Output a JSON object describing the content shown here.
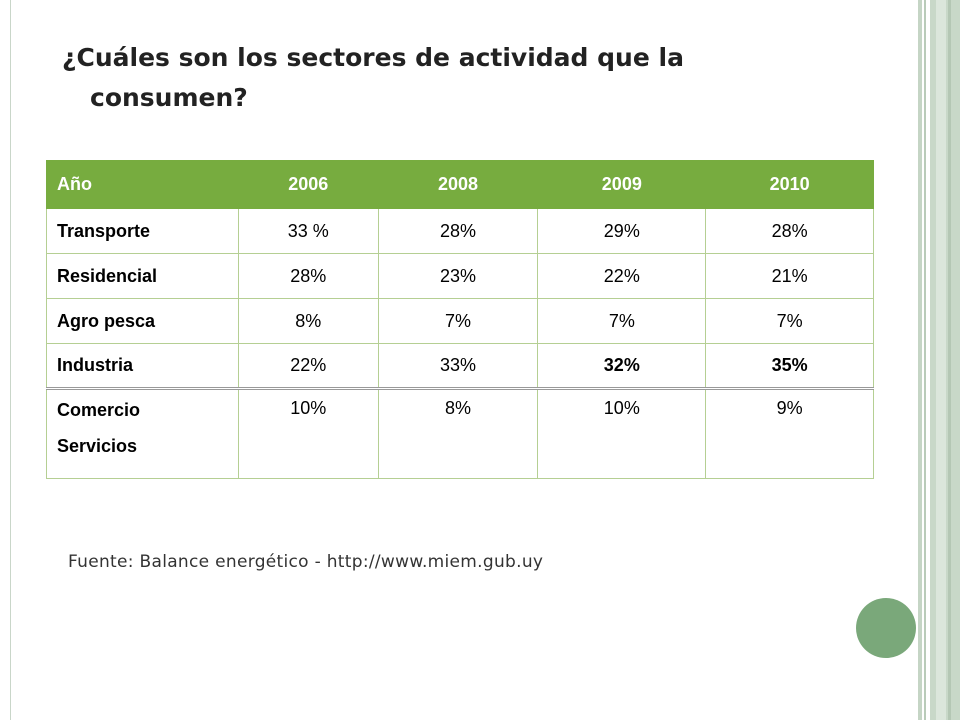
{
  "title": {
    "line1": "¿Cuáles son los sectores de actividad que la",
    "line2": "consumen?"
  },
  "table": {
    "headers": [
      "Año",
      "2006",
      "2008",
      "2009",
      "2010"
    ],
    "rows": [
      {
        "sector": "Transporte",
        "values": [
          "33 %",
          "28%",
          "29%",
          "28%"
        ]
      },
      {
        "sector": "Residencial",
        "values": [
          "28%",
          "23%",
          "22%",
          "21%"
        ]
      },
      {
        "sector": "Agro pesca",
        "values": [
          "8%",
          "7%",
          "7%",
          "7%"
        ]
      },
      {
        "sector": "Industria",
        "values": [
          "22%",
          "33%",
          "32%",
          "35%"
        ]
      },
      {
        "sector_line1": "Comercio",
        "sector_line2": "Servicios",
        "values": [
          "10%",
          "8%",
          "10%",
          "9%"
        ]
      }
    ]
  },
  "source": "Fuente:  Balance energético - http://www.miem.gub.uy",
  "colors": {
    "header_bg": "#77ac3f",
    "accent_circle": "#7aa87a",
    "stripe": "#c8d8c8"
  }
}
